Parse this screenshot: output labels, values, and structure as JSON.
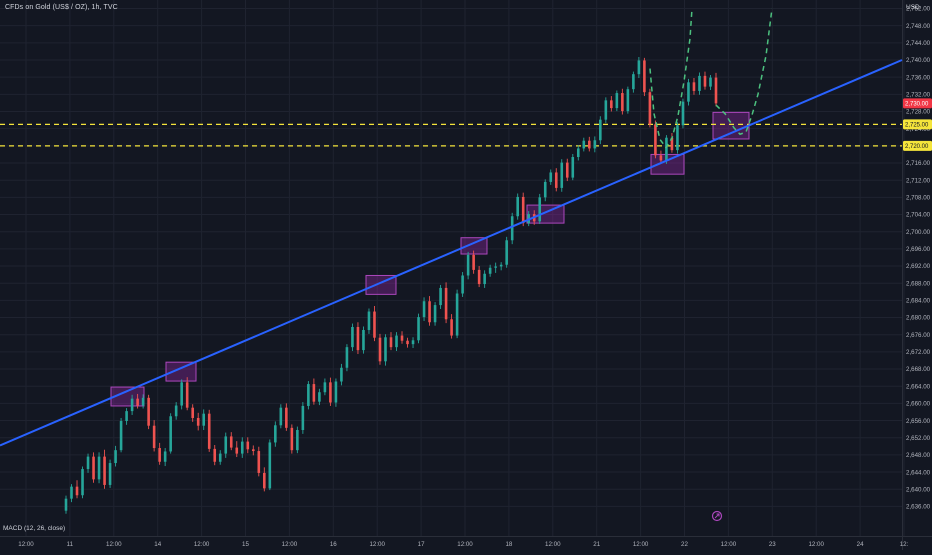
{
  "header": {
    "symbol": "CFDs on Gold (US$ / OZ), 1h, TVC",
    "currency": "USD"
  },
  "indicator": {
    "label": "MACD (12, 26, close)",
    "icon": "target-icon"
  },
  "colors": {
    "background": "#131722",
    "grid": "#1f2330",
    "bull": "#26a69a",
    "bear": "#ef5350",
    "trendline": "#2962ff",
    "level": "#f5e53b",
    "zone": "#9c27b0",
    "forecast": "#4cc17f"
  },
  "chart_data": {
    "type": "candlestick",
    "title": "CFDs on Gold (US$ / OZ), 1h, TVC",
    "y_axis": {
      "ticks": [
        2636,
        2640,
        2644,
        2648,
        2652,
        2656,
        2660,
        2664,
        2668,
        2672,
        2676,
        2680,
        2684,
        2688,
        2692,
        2696,
        2700,
        2704,
        2708,
        2712,
        2716,
        2720,
        2724,
        2728,
        2732,
        2736,
        2740,
        2744,
        2748,
        2752
      ],
      "tick_labels": [
        "2,636.00",
        "2,640.00",
        "2,644.00",
        "2,648.00",
        "2,652.00",
        "2,656.00",
        "2,660.00",
        "2,664.00",
        "2,668.00",
        "2,672.00",
        "2,676.00",
        "2,680.00",
        "2,684.00",
        "2,688.00",
        "2,692.00",
        "2,696.00",
        "2,700.00",
        "2,704.00",
        "2,708.00",
        "2,712.00",
        "2,716.00",
        "2,720.00",
        "2,724.00",
        "2,728.00",
        "2,732.00",
        "2,736.00",
        "2,740.00",
        "2,744.00",
        "2,748.00",
        "2,752.00"
      ],
      "range": [
        2634,
        2754
      ]
    },
    "x_axis": {
      "ticks": [
        "12:00",
        "11",
        "12:00",
        "14",
        "12:00",
        "15",
        "12:00",
        "16",
        "12:00",
        "17",
        "12:00",
        "18",
        "12:00",
        "21",
        "12:00",
        "22",
        "12:00",
        "23",
        "12:00",
        "24",
        "12:"
      ]
    },
    "price_tags": [
      {
        "label": "2,730.00",
        "value": 2729.9,
        "kind": "current"
      },
      {
        "label": "2,725.00",
        "value": 2725.0,
        "kind": "level"
      },
      {
        "label": "2,720.00",
        "value": 2720.0,
        "kind": "level"
      }
    ],
    "horizontal_levels": [
      2725.0,
      2720.0
    ],
    "trendline": {
      "from_price": 2650.2,
      "to_price": 2740.0
    },
    "support_zones": [
      {
        "low": 2659.4,
        "high": 2663.8
      },
      {
        "low": 2665.2,
        "high": 2669.6
      },
      {
        "low": 2685.4,
        "high": 2689.8
      },
      {
        "low": 2694.8,
        "high": 2698.6
      },
      {
        "low": 2702.0,
        "high": 2706.2
      },
      {
        "low": 2713.4,
        "high": 2718.0
      },
      {
        "low": 2721.6,
        "high": 2727.8
      }
    ],
    "forecast_paths": [
      [
        2729.5,
        2727.5,
        2724.2,
        2722.7,
        2723.2,
        2727.2,
        2732.0,
        2741.0,
        2752.0
      ],
      [
        2738.0,
        2727.5,
        2721.5,
        2719.6,
        2721.8,
        2727.0,
        2735.0,
        2745.0,
        2752.0
      ]
    ],
    "candles_ohlc": [
      [
        2635.0,
        2638.5,
        2634.3,
        2637.8
      ],
      [
        2637.8,
        2641.2,
        2637.0,
        2640.6
      ],
      [
        2640.6,
        2642.1,
        2637.9,
        2638.6
      ],
      [
        2638.6,
        2645.3,
        2637.9,
        2644.7
      ],
      [
        2644.7,
        2648.3,
        2643.8,
        2647.6
      ],
      [
        2647.6,
        2648.6,
        2641.5,
        2642.3
      ],
      [
        2642.3,
        2648.6,
        2641.4,
        2647.6
      ],
      [
        2647.6,
        2649.2,
        2640.1,
        2641.0
      ],
      [
        2641.0,
        2646.9,
        2640.3,
        2646.1
      ],
      [
        2646.1,
        2650.1,
        2645.3,
        2649.1
      ],
      [
        2649.1,
        2656.6,
        2648.6,
        2655.9
      ],
      [
        2655.9,
        2658.9,
        2655.0,
        2658.2
      ],
      [
        2658.2,
        2662.0,
        2657.3,
        2661.1
      ],
      [
        2661.1,
        2662.2,
        2658.8,
        2659.5
      ],
      [
        2659.5,
        2662.1,
        2658.8,
        2661.3
      ],
      [
        2661.3,
        2662.0,
        2654.0,
        2654.8
      ],
      [
        2654.8,
        2656.1,
        2648.8,
        2649.6
      ],
      [
        2649.6,
        2650.8,
        2645.7,
        2646.4
      ],
      [
        2646.4,
        2649.6,
        2645.4,
        2648.8
      ],
      [
        2648.8,
        2657.7,
        2648.3,
        2657.0
      ],
      [
        2657.0,
        2660.3,
        2656.2,
        2659.5
      ],
      [
        2659.5,
        2665.6,
        2658.6,
        2664.9
      ],
      [
        2664.9,
        2666.1,
        2658.4,
        2659.0
      ],
      [
        2659.0,
        2659.8,
        2655.7,
        2656.6
      ],
      [
        2656.6,
        2657.8,
        2653.7,
        2654.8
      ],
      [
        2654.8,
        2658.6,
        2653.8,
        2657.6
      ],
      [
        2657.6,
        2658.5,
        2648.7,
        2649.4
      ],
      [
        2649.4,
        2650.3,
        2645.6,
        2646.4
      ],
      [
        2646.4,
        2649.1,
        2645.7,
        2648.3
      ],
      [
        2648.3,
        2653.2,
        2647.3,
        2652.3
      ],
      [
        2652.3,
        2653.3,
        2649.1,
        2649.7
      ],
      [
        2649.7,
        2651.2,
        2647.5,
        2648.3
      ],
      [
        2648.3,
        2652.1,
        2647.3,
        2651.1
      ],
      [
        2651.1,
        2652.1,
        2648.4,
        2649.3
      ],
      [
        2649.3,
        2650.2,
        2647.9,
        2648.9
      ],
      [
        2648.9,
        2649.9,
        2643.0,
        2643.8
      ],
      [
        2643.8,
        2645.1,
        2639.5,
        2640.2
      ],
      [
        2640.2,
        2651.6,
        2639.8,
        2650.9
      ],
      [
        2650.9,
        2655.8,
        2649.9,
        2654.9
      ],
      [
        2654.9,
        2659.8,
        2654.2,
        2659.0
      ],
      [
        2659.0,
        2660.0,
        2653.6,
        2654.3
      ],
      [
        2654.3,
        2655.1,
        2648.3,
        2649.1
      ],
      [
        2649.1,
        2654.6,
        2648.4,
        2653.8
      ],
      [
        2653.8,
        2660.3,
        2652.9,
        2659.4
      ],
      [
        2659.4,
        2665.2,
        2658.6,
        2664.5
      ],
      [
        2664.5,
        2665.8,
        2659.7,
        2660.4
      ],
      [
        2660.4,
        2663.4,
        2659.6,
        2662.6
      ],
      [
        2662.6,
        2665.8,
        2661.9,
        2664.9
      ],
      [
        2664.9,
        2666.0,
        2659.4,
        2660.2
      ],
      [
        2660.2,
        2665.8,
        2659.2,
        2665.1
      ],
      [
        2665.1,
        2669.2,
        2664.2,
        2668.3
      ],
      [
        2668.3,
        2673.8,
        2667.5,
        2673.1
      ],
      [
        2673.1,
        2678.6,
        2672.2,
        2677.8
      ],
      [
        2677.8,
        2678.9,
        2671.5,
        2672.4
      ],
      [
        2672.4,
        2677.9,
        2671.6,
        2677.1
      ],
      [
        2677.1,
        2682.1,
        2676.2,
        2681.4
      ],
      [
        2681.4,
        2682.7,
        2674.5,
        2675.3
      ],
      [
        2675.3,
        2676.2,
        2669.0,
        2669.8
      ],
      [
        2669.8,
        2676.1,
        2668.8,
        2675.4
      ],
      [
        2675.4,
        2676.6,
        2672.4,
        2673.1
      ],
      [
        2673.1,
        2676.6,
        2672.2,
        2675.8
      ],
      [
        2675.8,
        2676.8,
        2673.9,
        2674.6
      ],
      [
        2674.6,
        2675.3,
        2673.0,
        2673.8
      ],
      [
        2673.8,
        2675.4,
        2672.9,
        2674.7
      ],
      [
        2674.7,
        2680.9,
        2674.0,
        2680.1
      ],
      [
        2680.1,
        2684.7,
        2679.2,
        2683.8
      ],
      [
        2683.8,
        2685.0,
        2678.1,
        2678.9
      ],
      [
        2678.9,
        2683.6,
        2678.1,
        2682.9
      ],
      [
        2682.9,
        2687.6,
        2682.0,
        2686.9
      ],
      [
        2686.9,
        2688.2,
        2678.7,
        2679.6
      ],
      [
        2679.6,
        2680.8,
        2675.1,
        2675.8
      ],
      [
        2675.8,
        2686.5,
        2675.2,
        2685.6
      ],
      [
        2685.6,
        2690.6,
        2684.8,
        2689.8
      ],
      [
        2689.8,
        2695.3,
        2688.9,
        2694.6
      ],
      [
        2694.6,
        2695.6,
        2690.2,
        2691.1
      ],
      [
        2691.1,
        2692.0,
        2687.1,
        2687.8
      ],
      [
        2687.8,
        2691.0,
        2686.9,
        2690.2
      ],
      [
        2690.2,
        2692.3,
        2689.5,
        2691.6
      ],
      [
        2691.6,
        2692.8,
        2690.4,
        2691.9
      ],
      [
        2691.9,
        2692.9,
        2691.0,
        2692.3
      ],
      [
        2692.3,
        2698.8,
        2691.6,
        2698.0
      ],
      [
        2698.0,
        2704.4,
        2697.1,
        2703.6
      ],
      [
        2703.6,
        2708.9,
        2702.8,
        2708.1
      ],
      [
        2708.1,
        2709.1,
        2701.3,
        2702.0
      ],
      [
        2702.0,
        2704.8,
        2701.3,
        2704.1
      ],
      [
        2704.1,
        2705.0,
        2701.6,
        2702.4
      ],
      [
        2702.4,
        2708.8,
        2701.8,
        2708.0
      ],
      [
        2708.0,
        2712.2,
        2707.1,
        2711.6
      ],
      [
        2711.6,
        2714.5,
        2710.9,
        2713.8
      ],
      [
        2713.8,
        2714.8,
        2709.4,
        2710.2
      ],
      [
        2710.2,
        2716.9,
        2709.3,
        2716.1
      ],
      [
        2716.1,
        2717.0,
        2711.8,
        2712.6
      ],
      [
        2712.6,
        2718.1,
        2712.0,
        2717.4
      ],
      [
        2717.4,
        2720.1,
        2716.6,
        2719.4
      ],
      [
        2719.4,
        2721.9,
        2718.7,
        2721.2
      ],
      [
        2721.2,
        2722.1,
        2718.7,
        2719.4
      ],
      [
        2719.4,
        2722.2,
        2718.5,
        2721.3
      ],
      [
        2721.3,
        2726.9,
        2720.4,
        2726.1
      ],
      [
        2726.1,
        2731.3,
        2725.3,
        2730.6
      ],
      [
        2730.6,
        2731.6,
        2728.0,
        2728.8
      ],
      [
        2728.8,
        2732.9,
        2728.1,
        2732.3
      ],
      [
        2732.3,
        2733.3,
        2727.3,
        2728.1
      ],
      [
        2728.1,
        2733.8,
        2727.5,
        2733.2
      ],
      [
        2733.2,
        2737.3,
        2732.4,
        2736.7
      ],
      [
        2736.7,
        2740.7,
        2735.8,
        2739.9
      ],
      [
        2739.9,
        2740.5,
        2731.6,
        2732.5
      ],
      [
        2732.5,
        2733.3,
        2724.3,
        2725.0
      ],
      [
        2725.0,
        2725.9,
        2717.1,
        2717.8
      ],
      [
        2717.8,
        2718.9,
        2716.0,
        2716.6
      ],
      [
        2716.6,
        2722.5,
        2715.8,
        2721.9
      ],
      [
        2721.9,
        2723.0,
        2718.4,
        2719.0
      ],
      [
        2719.0,
        2725.5,
        2718.2,
        2724.8
      ],
      [
        2724.8,
        2731.0,
        2724.1,
        2730.3
      ],
      [
        2730.3,
        2735.6,
        2729.4,
        2734.8
      ],
      [
        2734.8,
        2735.8,
        2731.9,
        2732.8
      ],
      [
        2732.8,
        2737.1,
        2731.9,
        2736.3
      ],
      [
        2736.3,
        2737.3,
        2733.1,
        2733.8
      ],
      [
        2733.8,
        2736.5,
        2733.0,
        2735.9
      ],
      [
        2735.9,
        2737.0,
        2729.2,
        2729.9
      ]
    ]
  }
}
